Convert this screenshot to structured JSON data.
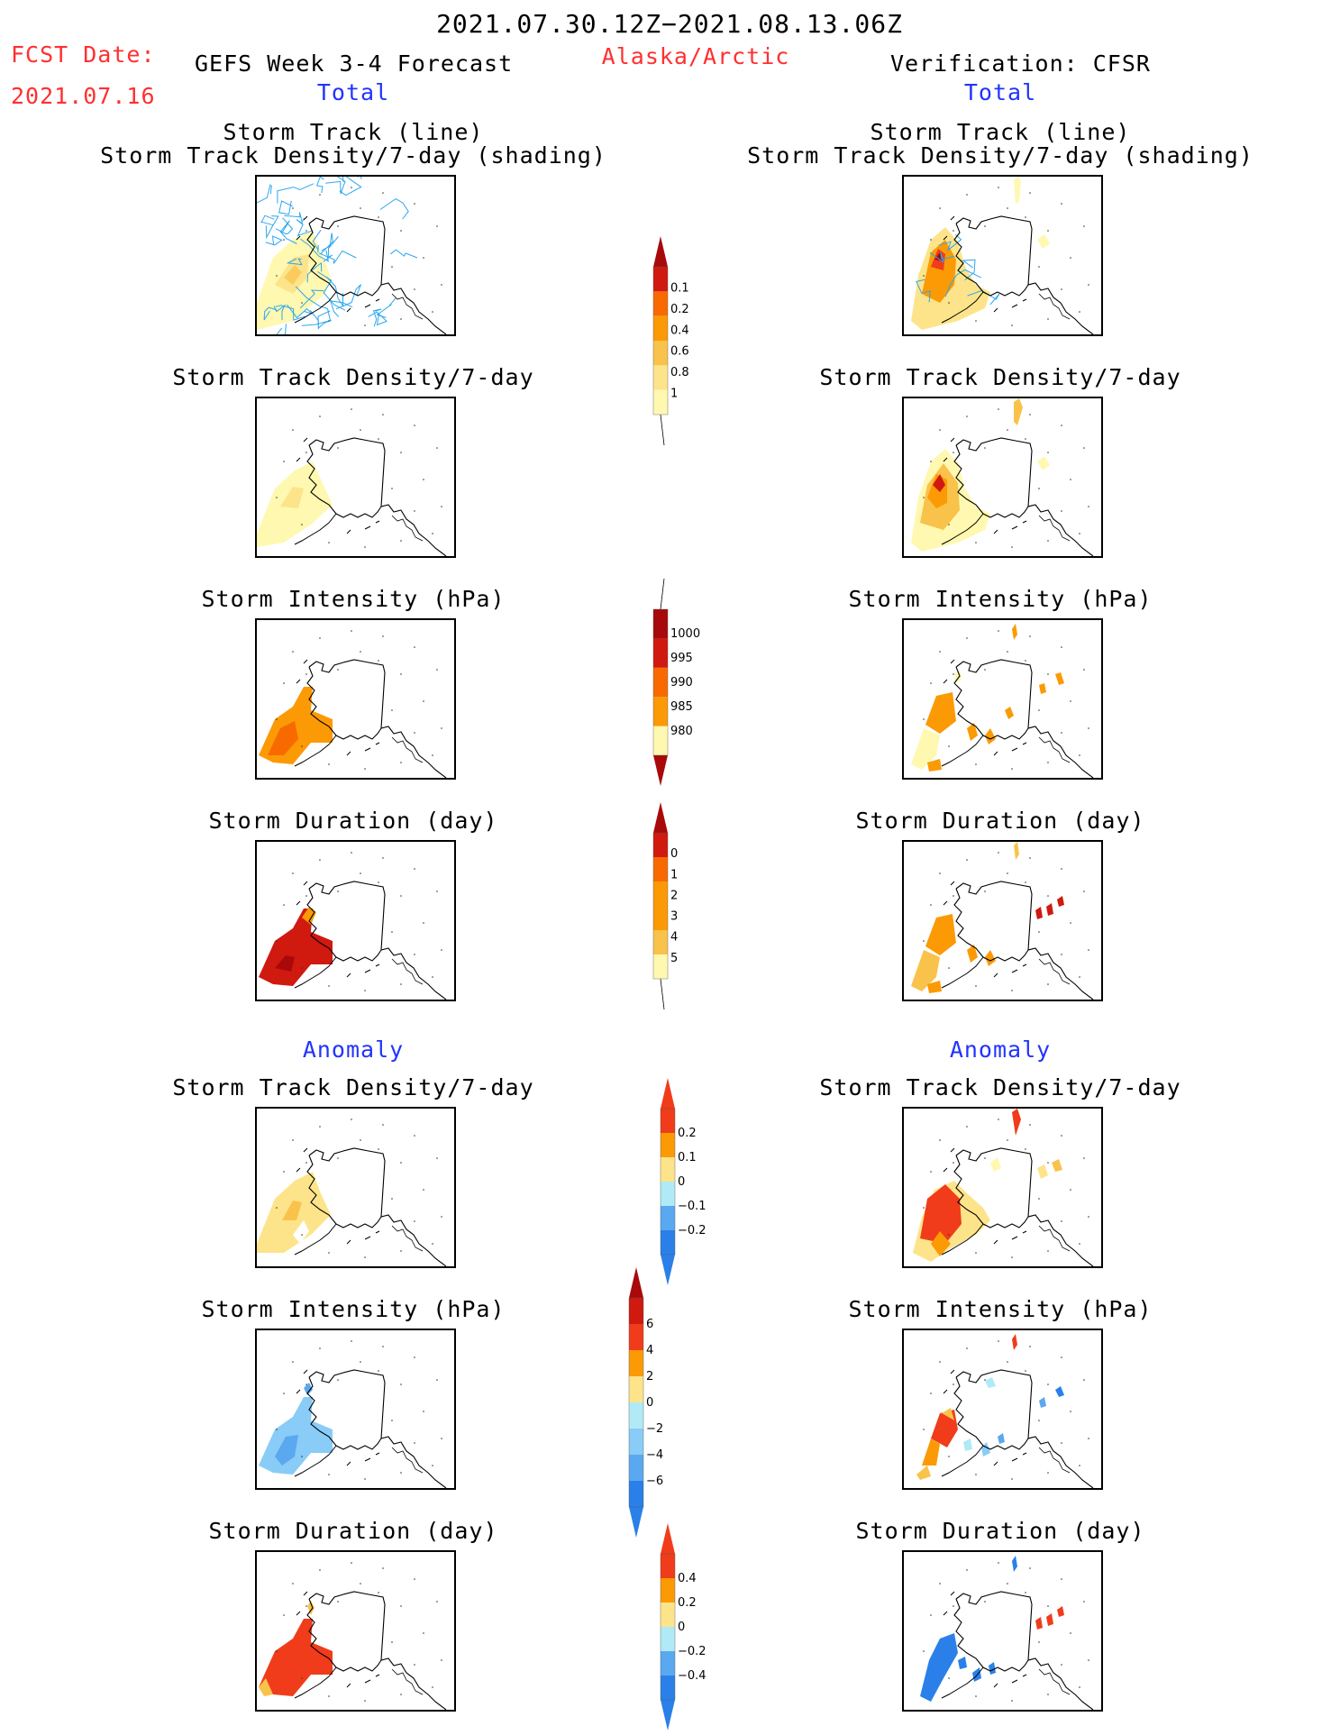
{
  "header": {
    "date_range": "2021.07.30.12Z−2021.08.13.06Z",
    "fcst_label": "FCST Date:",
    "fcst_date": "2021.07.16",
    "forecast_title": "GEFS Week 3-4 Forecast",
    "region": "Alaska/Arctic",
    "verification": "Verification: CFSR",
    "total_left": "Total",
    "total_right": "Total",
    "anomaly_left": "Anomaly",
    "anomaly_right": "Anomaly"
  },
  "panels": {
    "track_line": "Storm Track (line)",
    "track_density_shading": "Storm Track Density/7-day (shading)",
    "track_density": "Storm Track Density/7-day",
    "intensity": "Storm Intensity (hPa)",
    "duration": "Storm Duration (day)"
  },
  "colors": {
    "pale_yellow": "#fff8b0",
    "yellow": "#fde48a",
    "light_orange": "#f9c24a",
    "orange": "#fb9a05",
    "dark_orange": "#f86a00",
    "red_orange": "#f03c1a",
    "red": "#d0190f",
    "dark_red": "#a8090b",
    "light_cyan": "#b0eaf7",
    "light_blue": "#88ccf7",
    "mid_blue": "#5aa8f0",
    "blue": "#2a80e8",
    "track_line": "#2aa7f0"
  },
  "colorbars": {
    "density_total": [
      "0.1",
      "0.2",
      "0.4",
      "0.6",
      "0.8",
      "1"
    ],
    "intensity_total": [
      "1000",
      "995",
      "990",
      "985",
      "980"
    ],
    "duration_total": [
      "0",
      "1",
      "2",
      "3",
      "4",
      "5"
    ],
    "density_anom": [
      "0.2",
      "0.1",
      "0",
      "−0.1",
      "−0.2"
    ],
    "intensity_anom": [
      "6",
      "4",
      "2",
      "0",
      "−2",
      "−4",
      "−6"
    ],
    "duration_anom": [
      "0.4",
      "0.2",
      "0",
      "−0.2",
      "−0.4"
    ]
  }
}
